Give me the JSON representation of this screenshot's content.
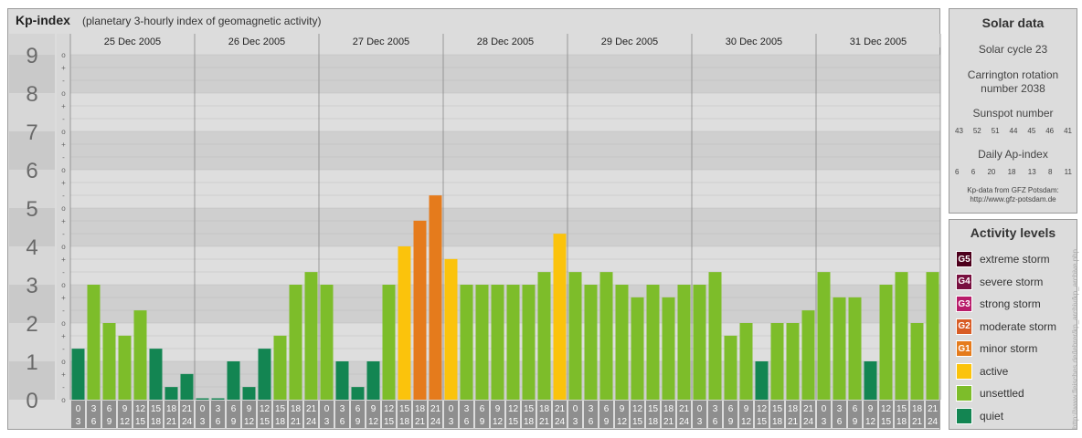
{
  "header": {
    "title": "Kp-index",
    "subtitle": "(planetary 3-hourly index of geomagnetic activity)"
  },
  "colors": {
    "quiet": "#138552",
    "unsettled": "#7dbd2a",
    "active": "#fbc30c",
    "minor": "#e57b1c",
    "moderate": "#d85c25",
    "strong": "#b81c6a",
    "severe": "#78103f",
    "extreme": "#4d001c"
  },
  "chart_data": {
    "type": "bar",
    "title": "Kp-index",
    "ylim": [
      0,
      9
    ],
    "y_ticks": [
      "0",
      "1",
      "2",
      "3",
      "4",
      "5",
      "6",
      "7",
      "8",
      "9"
    ],
    "sub_tick_labels": [
      "o",
      "+",
      "-",
      "o",
      "+",
      "-",
      "o",
      "+",
      "-",
      "o",
      "+",
      "-",
      "o",
      "+",
      "-",
      "o",
      "+",
      "-",
      "o",
      "+",
      "-",
      "o",
      "+",
      "-",
      "o",
      "+",
      "-",
      "o"
    ],
    "days": [
      "25 Dec 2005",
      "26 Dec 2005",
      "27 Dec 2005",
      "28 Dec 2005",
      "29 Dec 2005",
      "30 Dec 2005",
      "31 Dec 2005"
    ],
    "hour_labels_top": [
      "0",
      "3",
      "6",
      "9",
      "12",
      "15",
      "18",
      "21"
    ],
    "hour_labels_bottom": [
      "3",
      "6",
      "9",
      "12",
      "15",
      "18",
      "21",
      "24"
    ],
    "values": [
      [
        1.33,
        3.0,
        2.0,
        1.67,
        2.33,
        1.33,
        0.33,
        0.67
      ],
      [
        0.0,
        0.0,
        1.0,
        0.33,
        1.33,
        1.67,
        3.0,
        3.33
      ],
      [
        3.0,
        1.0,
        0.33,
        1.0,
        3.0,
        4.0,
        4.67,
        5.33
      ],
      [
        3.67,
        3.0,
        3.0,
        3.0,
        3.0,
        3.0,
        3.33,
        4.33
      ],
      [
        3.33,
        3.0,
        3.33,
        3.0,
        2.67,
        3.0,
        2.67,
        3.0
      ],
      [
        3.0,
        3.33,
        1.67,
        2.0,
        1.0,
        2.0,
        2.0,
        2.33
      ],
      [
        3.33,
        2.67,
        2.67,
        1.0,
        3.0,
        3.33,
        2.0,
        3.33
      ]
    ]
  },
  "solar": {
    "title": "Solar data",
    "cycle": "Solar cycle 23",
    "carrington_line1": "Carrington rotation",
    "carrington_line2": "number 2038",
    "sunspot_title": "Sunspot number",
    "sunspot_values": [
      "43",
      "52",
      "51",
      "44",
      "45",
      "46",
      "41"
    ],
    "ap_title": "Daily Ap-index",
    "ap_values": [
      "6",
      "6",
      "20",
      "18",
      "13",
      "8",
      "11"
    ],
    "credit_line1": "Kp-data from GFZ Potsdam:",
    "credit_line2": "http://www.gfz-potsdam.de"
  },
  "activity": {
    "title": "Activity levels",
    "items": [
      {
        "code": "G5",
        "label": "extreme storm",
        "color": "#4d001c"
      },
      {
        "code": "G4",
        "label": "severe storm",
        "color": "#78103f"
      },
      {
        "code": "G3",
        "label": "strong storm",
        "color": "#b81c6a"
      },
      {
        "code": "G2",
        "label": "moderate storm",
        "color": "#d85c25"
      },
      {
        "code": "G1",
        "label": "minor storm",
        "color": "#e57b1c"
      },
      {
        "code": "",
        "label": "active",
        "color": "#fbc30c"
      },
      {
        "code": "",
        "label": "unsettled",
        "color": "#7dbd2a"
      },
      {
        "code": "",
        "label": "quiet",
        "color": "#138552"
      }
    ]
  },
  "side_credit": "http://www.fleisches.de/lehrer/kp_archiv/kp_archive.php"
}
